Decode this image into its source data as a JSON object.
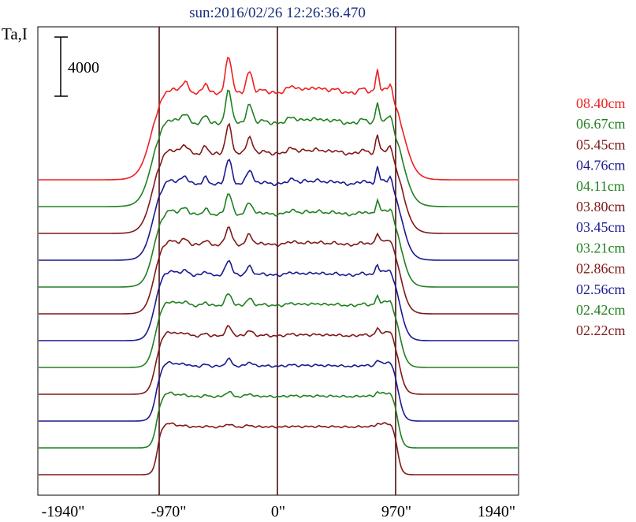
{
  "chart_data": {
    "type": "line",
    "title": "sun:2016/02/26 12:26:36.470",
    "ylabel": "Ta,I",
    "scale_bar_label": "4000",
    "x_tick_labels": [
      "-1940\"",
      "-970\"",
      "0\"",
      "970\"",
      "1940\""
    ],
    "x_ticks": [
      -1940,
      -970,
      0,
      970,
      1940
    ],
    "xlim": [
      -1940,
      1940
    ],
    "vertical_lines": [
      -970,
      0,
      970
    ],
    "grid": false,
    "legend_position": "right",
    "series": [
      {
        "name": "08.40cm",
        "color": "#ee2020"
      },
      {
        "name": "06.67cm",
        "color": "#208020"
      },
      {
        "name": "05.45cm",
        "color": "#801818"
      },
      {
        "name": "04.76cm",
        "color": "#1a1a90"
      },
      {
        "name": "04.11cm",
        "color": "#208020"
      },
      {
        "name": "03.80cm",
        "color": "#801818"
      },
      {
        "name": "03.45cm",
        "color": "#1a1a90"
      },
      {
        "name": "03.21cm",
        "color": "#208020"
      },
      {
        "name": "02.86cm",
        "color": "#801818"
      },
      {
        "name": "02.56cm",
        "color": "#1a1a90"
      },
      {
        "name": "02.42cm",
        "color": "#208020"
      },
      {
        "name": "02.22cm",
        "color": "#801818"
      }
    ]
  }
}
